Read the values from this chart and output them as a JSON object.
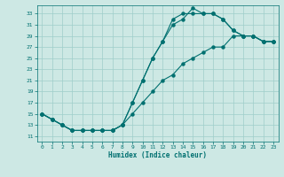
{
  "title": "",
  "xlabel": "Humidex (Indice chaleur)",
  "bg_color": "#cde8e4",
  "grid_color": "#9ececa",
  "line_color": "#007070",
  "xlim": [
    -0.5,
    23.5
  ],
  "ylim": [
    10.0,
    34.5
  ],
  "yticks": [
    11,
    13,
    15,
    17,
    19,
    21,
    23,
    25,
    27,
    29,
    31,
    33
  ],
  "xticks": [
    0,
    1,
    2,
    3,
    4,
    5,
    6,
    7,
    8,
    9,
    10,
    11,
    12,
    13,
    14,
    15,
    16,
    17,
    18,
    19,
    20,
    21,
    22,
    23
  ],
  "line1_x": [
    0,
    1,
    2,
    3,
    4,
    5,
    6,
    7,
    8,
    9,
    10,
    11,
    12,
    13,
    14,
    15,
    16,
    17,
    18,
    19,
    20,
    21,
    22,
    23
  ],
  "line1_y": [
    15,
    14,
    13,
    12,
    12,
    12,
    12,
    12,
    13,
    17,
    21,
    25,
    28,
    31,
    32,
    34,
    33,
    33,
    32,
    30,
    29,
    29,
    28,
    28
  ],
  "line2_x": [
    0,
    1,
    2,
    3,
    4,
    5,
    6,
    7,
    8,
    9,
    10,
    11,
    12,
    13,
    14,
    15,
    16,
    17,
    18,
    19,
    20,
    21,
    22,
    23
  ],
  "line2_y": [
    15,
    14,
    13,
    12,
    12,
    12,
    12,
    12,
    13,
    17,
    21,
    25,
    28,
    32,
    33,
    33,
    33,
    33,
    32,
    30,
    29,
    29,
    28,
    28
  ],
  "line3_x": [
    0,
    1,
    2,
    3,
    4,
    5,
    6,
    7,
    8,
    9,
    10,
    11,
    12,
    13,
    14,
    15,
    16,
    17,
    18,
    19,
    20,
    21,
    22,
    23
  ],
  "line3_y": [
    15,
    14,
    13,
    12,
    12,
    12,
    12,
    12,
    13,
    15,
    17,
    19,
    21,
    22,
    24,
    25,
    26,
    27,
    27,
    29,
    29,
    29,
    28,
    28
  ]
}
